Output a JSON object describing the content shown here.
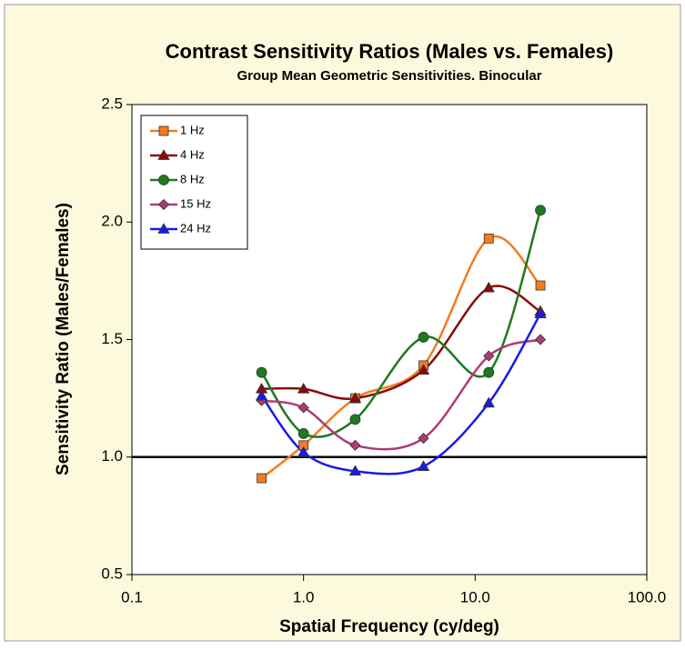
{
  "chart_data": {
    "type": "line",
    "title": "Contrast Sensitivity Ratios (Males vs. Females)",
    "subtitle": "Group Mean Geometric Sensitivities. Binocular",
    "x_label": "Spatial Frequency (cy/deg)",
    "y_label": "Sensitivity Ratio (Males/Females)",
    "x": [
      0.57,
      1,
      2,
      5,
      12,
      24
    ],
    "x_log": true,
    "xlim": [
      0.1,
      100
    ],
    "xticks": [
      {
        "value": 0.1,
        "label": "0.1"
      },
      {
        "value": 1,
        "label": "1.0"
      },
      {
        "value": 10,
        "label": "10.0"
      },
      {
        "value": 100,
        "label": "100.0"
      }
    ],
    "ylim": [
      0.5,
      2.5
    ],
    "yticks": [
      0.5,
      {
        "value": 1,
        "label": "1.0"
      },
      1.5,
      {
        "value": 2,
        "label": "2.0"
      },
      2.5
    ],
    "reference_line": 1,
    "legend": "upper left",
    "series": [
      {
        "name": "1 Hz",
        "color": "#f47b20",
        "marker": "square",
        "values": [
          0.91,
          1.05,
          1.25,
          1.39,
          1.93,
          1.73
        ]
      },
      {
        "name": "4 Hz",
        "color": "#8b0a0a",
        "marker": "triangle",
        "values": [
          1.29,
          1.29,
          1.25,
          1.37,
          1.72,
          1.62
        ]
      },
      {
        "name": "8 Hz",
        "color": "#1f7a1f",
        "marker": "circle",
        "values": [
          1.36,
          1.1,
          1.16,
          1.51,
          1.36,
          2.05
        ]
      },
      {
        "name": "15 Hz",
        "color": "#b03a78",
        "marker": "diamond",
        "values": [
          1.24,
          1.21,
          1.05,
          1.08,
          1.43,
          1.5
        ]
      },
      {
        "name": "24 Hz",
        "color": "#1a1ae6",
        "marker": "triangle",
        "values": [
          1.26,
          1.02,
          0.94,
          0.96,
          1.23,
          1.61
        ]
      }
    ]
  }
}
